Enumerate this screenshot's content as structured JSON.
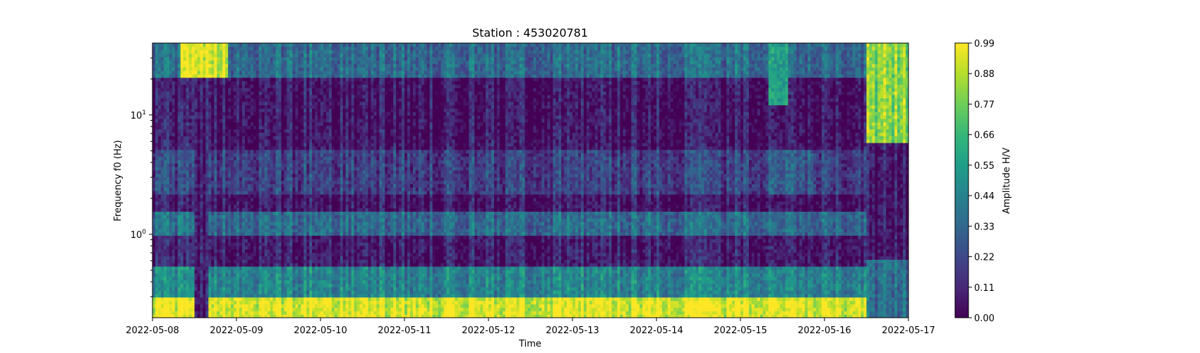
{
  "chart_data": {
    "type": "heatmap",
    "title": "Station : 453020781",
    "xlabel": "Time",
    "ylabel": "Frequency f0 (Hz)",
    "x_range": [
      "2022-05-08",
      "2022-05-17"
    ],
    "x_ticks": [
      "2022-05-08",
      "2022-05-09",
      "2022-05-10",
      "2022-05-11",
      "2022-05-12",
      "2022-05-13",
      "2022-05-14",
      "2022-05-15",
      "2022-05-16",
      "2022-05-17"
    ],
    "y_scale": "log",
    "y_range": [
      0.2,
      40
    ],
    "y_ticks": [
      {
        "value": 1,
        "label_base": "10",
        "label_exp": "0"
      },
      {
        "value": 10,
        "label_base": "10",
        "label_exp": "1"
      }
    ],
    "colormap": "viridis",
    "colorbar": {
      "label": "Amplitude H/V",
      "range": [
        0.0,
        0.99
      ],
      "ticks": [
        "0.00",
        "0.11",
        "0.22",
        "0.33",
        "0.44",
        "0.55",
        "0.66",
        "0.77",
        "0.88",
        "0.99"
      ]
    },
    "bands": [
      {
        "f_low": 0.2,
        "f_high": 0.3,
        "amplitude": 0.95
      },
      {
        "f_low": 0.3,
        "f_high": 0.55,
        "amplitude": 0.45
      },
      {
        "f_low": 0.55,
        "f_high": 0.95,
        "amplitude": 0.08
      },
      {
        "f_low": 0.95,
        "f_high": 1.6,
        "amplitude": 0.35
      },
      {
        "f_low": 1.6,
        "f_high": 2.2,
        "amplitude": 0.06
      },
      {
        "f_low": 2.2,
        "f_high": 5.0,
        "amplitude": 0.2
      },
      {
        "f_low": 5.0,
        "f_high": 20,
        "amplitude": 0.06
      },
      {
        "f_low": 20,
        "f_high": 40,
        "amplitude": 0.35
      }
    ],
    "events": [
      {
        "start": "2022-05-08T12:00",
        "end": "2022-05-08T16:00",
        "f_low": 0.2,
        "f_high": 40,
        "amplitude": 0.06
      },
      {
        "start": "2022-05-08T08:00",
        "end": "2022-05-08T22:00",
        "f_low": 20,
        "f_high": 40,
        "amplitude": 0.92
      },
      {
        "start": "2022-05-15T08:00",
        "end": "2022-05-15T14:00",
        "f_low": 12,
        "f_high": 40,
        "amplitude": 0.55
      },
      {
        "start": "2022-05-15T08:00",
        "end": "2022-05-15T22:00",
        "f_low": 2.2,
        "f_high": 5,
        "amplitude": 0.3
      },
      {
        "start": "2022-05-16T12:00",
        "end": "2022-05-17T00:00",
        "f_low": 0.2,
        "f_high": 0.6,
        "amplitude": 0.35
      },
      {
        "start": "2022-05-16T12:00",
        "end": "2022-05-17T00:00",
        "f_low": 0.6,
        "f_high": 5,
        "amplitude": 0.05
      },
      {
        "start": "2022-05-16T12:00",
        "end": "2022-05-17T00:00",
        "f_low": 6,
        "f_high": 40,
        "amplitude": 0.8
      }
    ]
  }
}
